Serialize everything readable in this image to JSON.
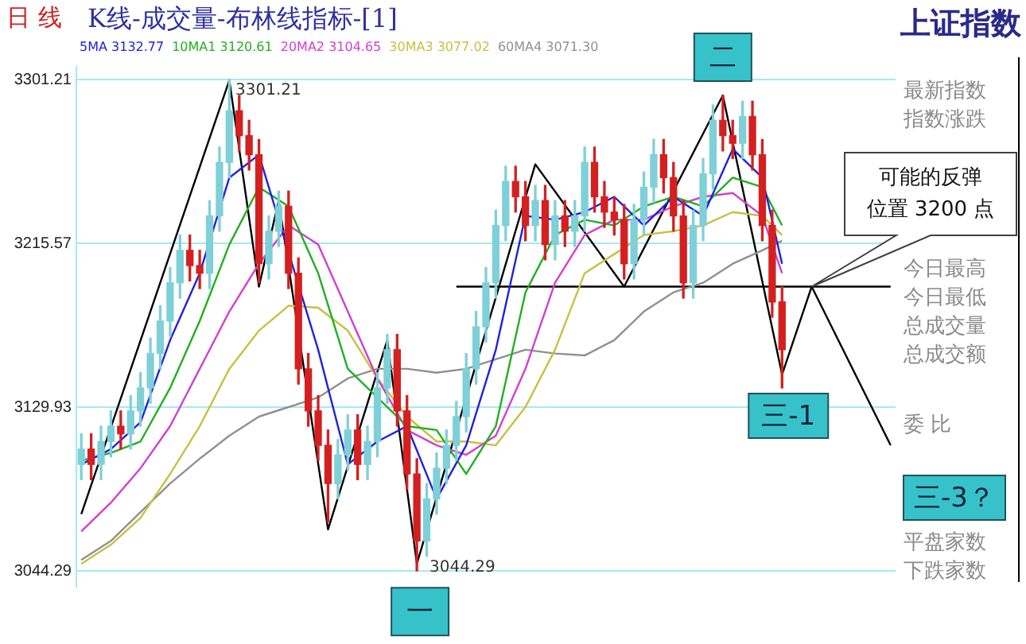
{
  "chart_data": {
    "type": "candlestick",
    "title": "K线-成交量-布林线指标-[1]",
    "categories": [
      null,
      null,
      null,
      null,
      null,
      null,
      null,
      null,
      null,
      null,
      null,
      null,
      null,
      null,
      null,
      null,
      null,
      null,
      null,
      null,
      null,
      null,
      null,
      null,
      null,
      null,
      null,
      null,
      null,
      null,
      null,
      null,
      null,
      null,
      null,
      null,
      null,
      null,
      null,
      null,
      null,
      null,
      null,
      null,
      null,
      null,
      null,
      null,
      null,
      null,
      null,
      null,
      null,
      null,
      null,
      null,
      null,
      null,
      null,
      null,
      null,
      null,
      null,
      null,
      null,
      null,
      null,
      null,
      null,
      null,
      null,
      null,
      null,
      null,
      null,
      null,
      null,
      null,
      null,
      null,
      null,
      null,
      null
    ],
    "ylim": [
      3036,
      3308
    ],
    "yticks": [
      3044.29,
      3129.93,
      3215.57,
      3301.21
    ],
    "grid": "y",
    "tick_labels": "y",
    "legend": "top",
    "marker": "none",
    "line_style": "solid",
    "series": [
      {
        "type": "candlestick",
        "ohlc": [
          [
            3100,
            3116,
            3092,
            3108
          ],
          [
            3108,
            3116,
            3092,
            3100
          ],
          [
            3100,
            3120,
            3092,
            3112
          ],
          [
            3112,
            3128,
            3104,
            3120
          ],
          [
            3120,
            3128,
            3108,
            3116
          ],
          [
            3116,
            3136,
            3108,
            3128
          ],
          [
            3128,
            3148,
            3120,
            3140
          ],
          [
            3140,
            3166,
            3132,
            3158
          ],
          [
            3158,
            3183,
            3150,
            3175
          ],
          [
            3175,
            3203,
            3167,
            3195
          ],
          [
            3195,
            3220,
            3187,
            3212
          ],
          [
            3212,
            3220,
            3196,
            3204
          ],
          [
            3204,
            3212,
            3192,
            3200
          ],
          [
            3200,
            3238,
            3192,
            3230
          ],
          [
            3230,
            3266,
            3222,
            3258
          ],
          [
            3258,
            3301.21,
            3250,
            3285
          ],
          [
            3285,
            3293,
            3264,
            3272
          ],
          [
            3272,
            3280,
            3254,
            3262
          ],
          [
            3262,
            3270,
            3195,
            3205
          ],
          [
            3205,
            3230,
            3197,
            3222
          ],
          [
            3222,
            3243,
            3214,
            3235
          ],
          [
            3235,
            3243,
            3192,
            3200
          ],
          [
            3200,
            3208,
            3142,
            3150
          ],
          [
            3150,
            3158,
            3120,
            3128
          ],
          [
            3128,
            3136,
            3102,
            3110
          ],
          [
            3110,
            3118,
            3070,
            3090
          ],
          [
            3090,
            3113,
            3082,
            3105
          ],
          [
            3105,
            3126,
            3097,
            3118
          ],
          [
            3118,
            3126,
            3092,
            3100
          ],
          [
            3100,
            3120,
            3092,
            3112
          ],
          [
            3112,
            3148,
            3104,
            3140
          ],
          [
            3140,
            3168,
            3132,
            3160
          ],
          [
            3160,
            3168,
            3120,
            3128
          ],
          [
            3128,
            3136,
            3087,
            3095
          ],
          [
            3095,
            3103,
            3044.29,
            3060
          ],
          [
            3060,
            3090,
            3052,
            3082
          ],
          [
            3082,
            3106,
            3074,
            3098
          ],
          [
            3098,
            3118,
            3090,
            3110
          ],
          [
            3110,
            3133,
            3102,
            3125
          ],
          [
            3125,
            3158,
            3117,
            3150
          ],
          [
            3150,
            3180,
            3142,
            3172
          ],
          [
            3172,
            3203,
            3164,
            3195
          ],
          [
            3195,
            3233,
            3187,
            3225
          ],
          [
            3225,
            3256,
            3217,
            3248
          ],
          [
            3248,
            3256,
            3232,
            3240
          ],
          [
            3240,
            3248,
            3217,
            3225
          ],
          [
            3225,
            3246,
            3217,
            3238
          ],
          [
            3238,
            3246,
            3207,
            3215
          ],
          [
            3215,
            3238,
            3207,
            3230
          ],
          [
            3230,
            3238,
            3214,
            3222
          ],
          [
            3222,
            3238,
            3214,
            3230
          ],
          [
            3230,
            3266,
            3222,
            3258
          ],
          [
            3258,
            3266,
            3232,
            3240
          ],
          [
            3240,
            3248,
            3224,
            3232
          ],
          [
            3232,
            3240,
            3220,
            3228
          ],
          [
            3228,
            3236,
            3197,
            3205
          ],
          [
            3205,
            3236,
            3197,
            3228
          ],
          [
            3228,
            3253,
            3220,
            3245
          ],
          [
            3245,
            3270,
            3237,
            3262
          ],
          [
            3262,
            3270,
            3242,
            3250
          ],
          [
            3250,
            3258,
            3222,
            3230
          ],
          [
            3230,
            3238,
            3187,
            3195
          ],
          [
            3195,
            3233,
            3187,
            3225
          ],
          [
            3225,
            3260,
            3217,
            3252
          ],
          [
            3252,
            3288,
            3244,
            3280
          ],
          [
            3280,
            3293,
            3264,
            3272
          ],
          [
            3272,
            3280,
            3260,
            3268
          ],
          [
            3268,
            3290,
            3260,
            3282
          ],
          [
            3282,
            3290,
            3254,
            3262
          ],
          [
            3262,
            3270,
            3217,
            3225
          ],
          [
            3225,
            3233,
            3177,
            3185
          ],
          [
            3185,
            3193,
            3140,
            3160
          ],
          null,
          null,
          null,
          null,
          null,
          null,
          null,
          null,
          null,
          null,
          null
        ],
        "colors": [
          "#7fd0d8",
          "#d42020",
          "#7fd0d8",
          "#7fd0d8",
          "#d42020",
          "#7fd0d8",
          "#7fd0d8",
          "#7fd0d8",
          "#7fd0d8",
          "#7fd0d8",
          "#7fd0d8",
          "#d42020",
          "#d42020",
          "#7fd0d8",
          "#7fd0d8",
          "#7fd0d8",
          "#d42020",
          "#d42020",
          "#d42020",
          "#7fd0d8",
          "#7fd0d8",
          "#d42020",
          "#d42020",
          "#d42020",
          "#d42020",
          "#d42020",
          "#7fd0d8",
          "#7fd0d8",
          "#d42020",
          "#7fd0d8",
          "#7fd0d8",
          "#7fd0d8",
          "#d42020",
          "#d42020",
          "#d42020",
          "#7fd0d8",
          "#7fd0d8",
          "#7fd0d8",
          "#7fd0d8",
          "#7fd0d8",
          "#7fd0d8",
          "#7fd0d8",
          "#7fd0d8",
          "#7fd0d8",
          "#d42020",
          "#d42020",
          "#7fd0d8",
          "#d42020",
          "#7fd0d8",
          "#d42020",
          "#7fd0d8",
          "#7fd0d8",
          "#d42020",
          "#d42020",
          "#d42020",
          "#d42020",
          "#7fd0d8",
          "#7fd0d8",
          "#7fd0d8",
          "#d42020",
          "#d42020",
          "#d42020",
          "#7fd0d8",
          "#7fd0d8",
          "#7fd0d8",
          "#d42020",
          "#d42020",
          "#7fd0d8",
          "#d42020",
          "#d42020",
          "#d42020",
          "#d42020",
          null,
          null,
          null,
          null,
          null,
          null,
          null,
          null,
          null,
          null,
          null
        ]
      },
      {
        "type": "line",
        "name": "5MA 3132.77",
        "color": "#2020e0",
        "values": [
          3100,
          null,
          null,
          3108,
          null,
          null,
          3122,
          null,
          null,
          3165,
          null,
          null,
          3200,
          null,
          null,
          3250,
          null,
          null,
          3262,
          null,
          null,
          null,
          null,
          null,
          3160,
          null,
          null,
          3100,
          null,
          null,
          3112,
          null,
          null,
          3120,
          null,
          null,
          3082,
          null,
          null,
          3110,
          null,
          null,
          3160,
          null,
          null,
          3230,
          null,
          null,
          3228,
          null,
          null,
          3232,
          null,
          null,
          3240,
          null,
          null,
          3225,
          null,
          null,
          3240,
          null,
          null,
          3230,
          null,
          null,
          3265,
          null,
          null,
          3250,
          null,
          3205,
          null,
          null,
          null,
          null,
          null,
          null,
          null,
          null,
          null,
          null,
          null
        ]
      },
      {
        "type": "line",
        "name": "10MA1 3120.61",
        "color": "#20b020",
        "values": [
          3102,
          null,
          null,
          3106,
          null,
          null,
          3112,
          null,
          null,
          3140,
          null,
          null,
          3175,
          null,
          null,
          3215,
          null,
          null,
          3245,
          null,
          null,
          3235,
          null,
          null,
          3200,
          null,
          null,
          3150,
          null,
          null,
          null,
          null,
          null,
          3120,
          null,
          null,
          3118,
          null,
          null,
          3095,
          null,
          null,
          3120,
          null,
          null,
          3190,
          null,
          null,
          3220,
          null,
          null,
          3228,
          null,
          null,
          3225,
          null,
          null,
          3235,
          null,
          null,
          3240,
          null,
          null,
          3235,
          null,
          null,
          3250,
          null,
          null,
          3245,
          null,
          3225,
          null,
          null,
          null,
          null,
          null,
          null,
          null,
          null,
          null,
          null,
          null
        ]
      },
      {
        "type": "line",
        "name": "20MA2 3104.65",
        "color": "#d040d0",
        "values": [
          3065,
          null,
          null,
          3080,
          null,
          null,
          3098,
          null,
          null,
          3120,
          null,
          null,
          3150,
          null,
          null,
          3180,
          null,
          null,
          3205,
          null,
          null,
          3225,
          null,
          null,
          3215,
          null,
          null,
          3180,
          null,
          null,
          3145,
          null,
          null,
          3118,
          null,
          null,
          3110,
          null,
          null,
          3105,
          null,
          null,
          3115,
          null,
          null,
          3150,
          null,
          null,
          3195,
          null,
          null,
          3220,
          null,
          null,
          3228,
          null,
          null,
          3228,
          null,
          null,
          3235,
          null,
          null,
          3240,
          null,
          null,
          3242,
          null,
          null,
          3230,
          null,
          3200,
          null,
          null,
          null,
          null,
          null,
          null,
          null,
          null,
          null,
          null,
          null
        ]
      },
      {
        "type": "line",
        "name": "30MA3 3077.02",
        "color": "#c8c040",
        "values": [
          3048,
          null,
          null,
          3058,
          null,
          null,
          3072,
          null,
          null,
          3095,
          null,
          null,
          3120,
          null,
          null,
          3150,
          null,
          null,
          3170,
          null,
          null,
          3183,
          null,
          null,
          3182,
          null,
          null,
          3170,
          null,
          null,
          3145,
          null,
          null,
          3125,
          null,
          null,
          3112,
          null,
          null,
          3112,
          null,
          null,
          3110,
          null,
          null,
          3130,
          null,
          null,
          3160,
          null,
          null,
          3200,
          null,
          null,
          3210,
          null,
          null,
          3220,
          null,
          null,
          3222,
          null,
          null,
          3225,
          null,
          null,
          3232,
          null,
          null,
          3230,
          null,
          3220,
          null,
          null,
          null,
          null,
          null,
          null,
          null,
          null,
          null,
          null,
          null
        ]
      },
      {
        "type": "line",
        "name": "60MA4 3071.30",
        "color": "#909090",
        "values": [
          3050,
          null,
          null,
          3060,
          null,
          null,
          3075,
          null,
          null,
          3090,
          null,
          null,
          3103,
          null,
          null,
          3115,
          null,
          null,
          3125,
          null,
          null,
          3130,
          null,
          null,
          3135,
          null,
          null,
          3145,
          null,
          null,
          3150,
          null,
          null,
          3150,
          null,
          null,
          3148,
          null,
          null,
          3150,
          null,
          null,
          3155,
          null,
          null,
          3160,
          null,
          null,
          3158,
          null,
          null,
          3157,
          null,
          null,
          3165,
          null,
          null,
          3180,
          null,
          null,
          3190,
          null,
          null,
          3195,
          null,
          null,
          3205,
          null,
          null,
          3212,
          null,
          3217,
          null,
          null,
          null,
          null,
          null,
          null,
          null,
          null,
          null,
          null,
          null
        ]
      },
      {
        "type": "line",
        "color": "#000000",
        "values": [
          3074,
          null,
          null,
          null,
          null,
          null,
          null,
          null,
          null,
          null,
          null,
          null,
          null,
          null,
          null,
          3301,
          null,
          null,
          3193,
          null,
          3238,
          null,
          null,
          null,
          null,
          3066,
          null,
          null,
          null,
          null,
          null,
          3165,
          null,
          null,
          3048,
          null,
          null,
          null,
          null,
          null,
          null,
          null,
          null,
          null,
          null,
          null,
          3257,
          null,
          null,
          null,
          null,
          null,
          null,
          null,
          null,
          3193,
          null,
          null,
          null,
          null,
          null,
          null,
          null,
          null,
          null,
          3293,
          null,
          null,
          null,
          null,
          null,
          3147,
          null,
          null,
          3193,
          null,
          null,
          null,
          null,
          null,
          null,
          null,
          3110
        ]
      },
      {
        "type": "line",
        "color": "#000000",
        "values": [
          null,
          null,
          null,
          null,
          null,
          null,
          null,
          null,
          null,
          null,
          null,
          null,
          null,
          null,
          null,
          null,
          null,
          null,
          null,
          null,
          null,
          null,
          null,
          null,
          null,
          null,
          null,
          null,
          null,
          null,
          null,
          null,
          null,
          null,
          null,
          null,
          null,
          null,
          3193,
          null,
          null,
          null,
          null,
          null,
          null,
          null,
          null,
          null,
          null,
          null,
          null,
          null,
          null,
          null,
          null,
          null,
          null,
          null,
          null,
          null,
          null,
          null,
          null,
          null,
          null,
          null,
          null,
          null,
          null,
          null,
          null,
          null,
          null,
          null,
          null,
          null,
          null,
          null,
          null,
          null,
          null,
          null,
          3193
        ]
      }
    ],
    "annotations": [
      "日 线",
      "上证指数",
      "3301.21",
      "3044.29",
      {
        "text": "一",
        "y": 3048
      },
      {
        "text": "二",
        "y": 3293
      },
      {
        "text": "三-1",
        "y": 3147
      },
      "三-3？",
      "可能的反弹位置 3200 点",
      "最新指数",
      "指数涨跌",
      "今日最高",
      "今日最低",
      "总成交量",
      "总成交额",
      "委 比",
      "平盘家数",
      "下跌家数"
    ]
  }
}
